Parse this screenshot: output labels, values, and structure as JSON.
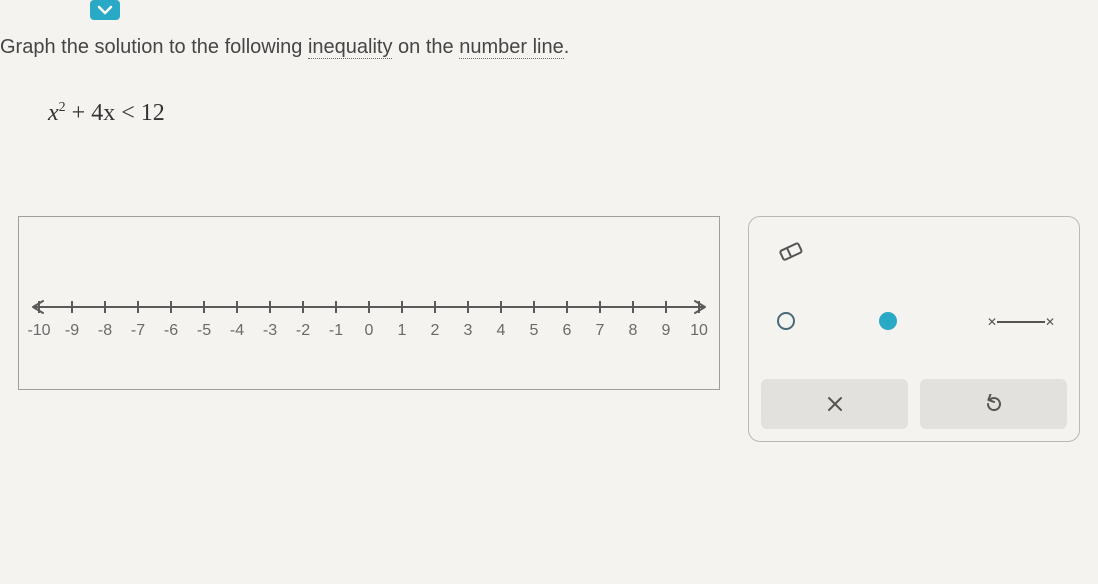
{
  "prompt": {
    "pre": "Graph the solution to the following ",
    "word1": "inequality",
    "mid": " on the ",
    "word2": "number line",
    "post": "."
  },
  "formula": {
    "var": "x",
    "exp": "2",
    "rest": " + 4x < 12"
  },
  "numberline": {
    "min": -10,
    "max": 10,
    "step": 1,
    "axis_color": "#5a5a5a",
    "tick_color": "#5a5a5a",
    "label_color": "#6a6a6a",
    "label_fontsize": 16,
    "tick_height": 12,
    "labels": [
      "-10",
      "-9",
      "-8",
      "-7",
      "-6",
      "-5",
      "-4",
      "-3",
      "-2",
      "-1",
      "0",
      "1",
      "2",
      "3",
      "4",
      "5",
      "6",
      "7",
      "8",
      "9",
      "10"
    ]
  },
  "toolbox": {
    "eraser_stroke": "#555",
    "open_circle_stroke": "#4a6a7a",
    "closed_circle_fill": "#2aa9c7",
    "segment_color": "#555",
    "clear_label": "×",
    "reset_label": "↺"
  },
  "colors": {
    "chevron_bg": "#2aa9c7",
    "chevron_fg": "#ffffff",
    "box_border": "#9e9e9e",
    "toolbox_border": "#b8b8b8",
    "button_bg": "#e3e1de",
    "background": "#f5f3f0"
  }
}
